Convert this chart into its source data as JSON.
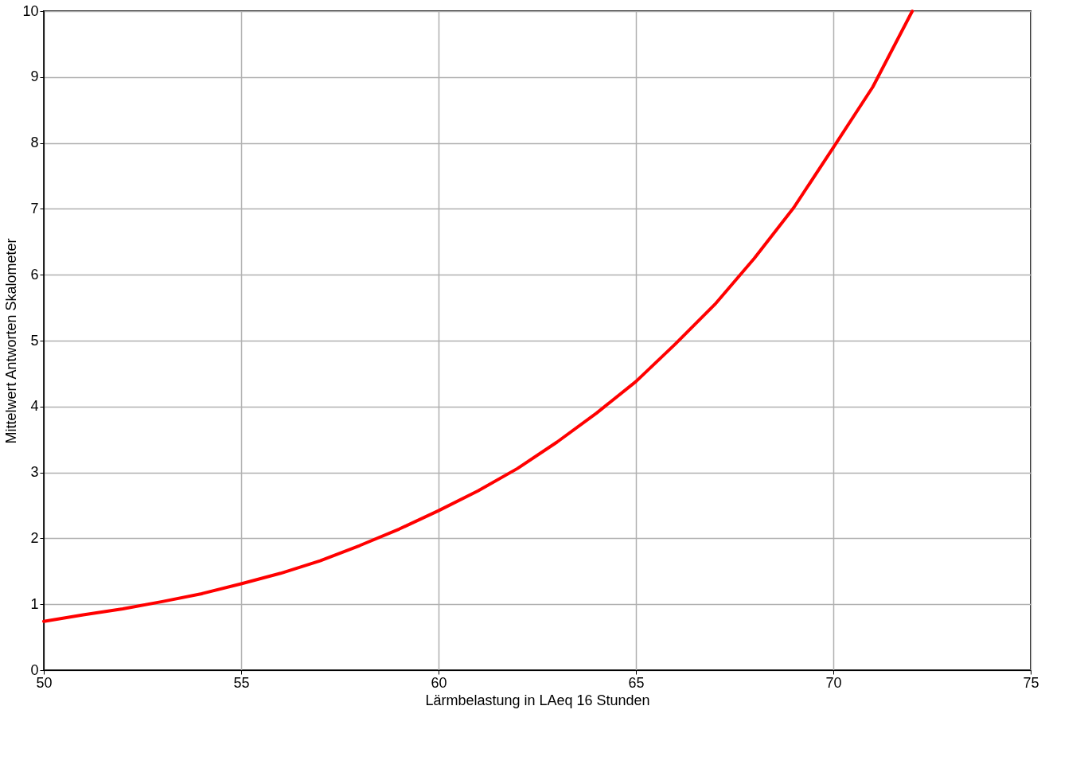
{
  "chart_data": {
    "type": "line",
    "xlabel": "Lärmbelastung in LAeq 16 Stunden",
    "ylabel": "Mittelwert Antworten Skalometer",
    "x": [
      50,
      51,
      52,
      53,
      54,
      55,
      56,
      57,
      58,
      59,
      60,
      61,
      62,
      63,
      64,
      65,
      66,
      67,
      68,
      69,
      70,
      71,
      72
    ],
    "series": [
      {
        "color": "#ff0000",
        "values": [
          0.74,
          0.84,
          0.93,
          1.04,
          1.16,
          1.31,
          1.47,
          1.66,
          1.89,
          2.14,
          2.42,
          2.72,
          3.06,
          3.46,
          3.9,
          4.38,
          4.95,
          5.55,
          6.25,
          7.02,
          7.93,
          8.85,
          10.0
        ]
      }
    ],
    "xlim": [
      50,
      75
    ],
    "xticks": [
      50,
      55,
      60,
      65,
      70,
      75
    ],
    "ylim": [
      0,
      10
    ],
    "yticks": [
      0,
      1,
      2,
      3,
      4,
      5,
      6,
      7,
      8,
      9,
      10
    ],
    "grid": true,
    "marker": "none",
    "line_style": "solid"
  }
}
